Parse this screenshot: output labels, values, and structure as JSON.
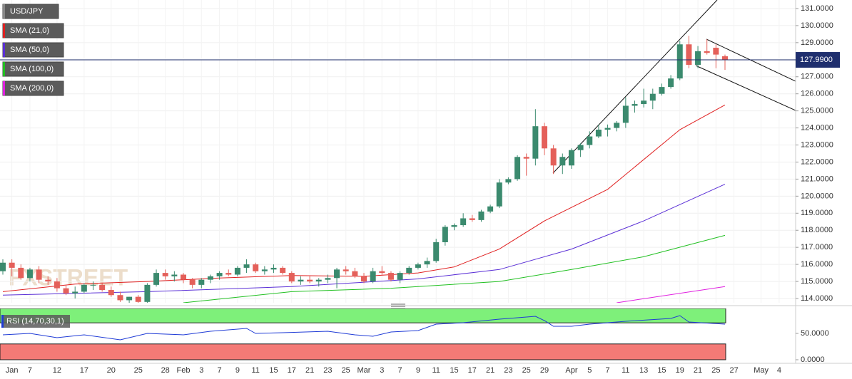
{
  "chart_data": [
    {
      "type": "candlestick",
      "watermark": "FXSTREET",
      "categories": [
        null,
        "Jan",
        null,
        "7",
        null,
        null,
        "12",
        null,
        null,
        "17",
        null,
        null,
        "20",
        null,
        null,
        "25",
        null,
        null,
        "28",
        null,
        "Feb",
        null,
        "3",
        null,
        "7",
        null,
        "9",
        null,
        "11",
        null,
        "15",
        null,
        "17",
        null,
        "21",
        null,
        "23",
        null,
        "25",
        null,
        "Mar",
        null,
        "3",
        null,
        "7",
        null,
        "9",
        null,
        "11",
        null,
        "15",
        null,
        "17",
        null,
        "21",
        null,
        "23",
        null,
        "25",
        null,
        "29",
        null,
        null,
        "Apr",
        null,
        "5",
        null,
        "7",
        null,
        "11",
        null,
        "13",
        null,
        "15",
        null,
        "19",
        null,
        "21",
        null,
        "25",
        null,
        "27",
        null,
        null,
        "May",
        null,
        "4"
      ],
      "candles": {
        "name": "USD/JPY",
        "up_color": "#3b8a6e",
        "down_color": "#e4605a",
        "open": [
          115.6,
          116.1,
          115.8,
          115.2,
          115.7,
          115.1,
          115.0,
          114.6,
          114.3,
          114.4,
          114.8,
          114.8,
          114.5,
          114.2,
          113.9,
          114.1,
          113.8,
          114.8,
          115.5,
          115.3,
          115.4,
          115.1,
          114.8,
          115.1,
          115.3,
          115.5,
          115.4,
          115.8,
          116.0,
          115.6,
          115.7,
          115.8,
          115.5,
          115.0,
          115.1,
          115.0,
          115.1,
          115.2,
          115.7,
          115.6,
          115.3,
          115.0,
          115.6,
          115.5,
          115.1,
          115.5,
          115.8,
          116.0,
          116.2,
          117.3,
          118.2,
          118.3,
          118.7,
          118.6,
          119.1,
          119.4,
          120.8,
          121.0,
          122.3,
          122.2,
          124.1,
          122.8,
          121.8,
          121.8,
          122.7,
          123.0,
          123.5,
          123.9,
          124.0,
          124.3,
          125.3,
          125.4,
          125.6,
          126.0,
          126.4,
          126.9,
          128.9,
          127.7,
          128.5,
          128.7,
          128.2,
          null,
          null,
          null,
          null,
          null,
          null
        ],
        "high": [
          116.3,
          116.3,
          116.0,
          115.8,
          115.9,
          115.3,
          115.2,
          114.8,
          114.7,
          114.9,
          115.0,
          114.9,
          114.7,
          114.4,
          114.1,
          114.2,
          114.9,
          115.7,
          115.7,
          115.6,
          115.5,
          115.2,
          115.2,
          115.4,
          115.6,
          115.7,
          115.9,
          116.3,
          116.1,
          115.9,
          116.0,
          115.9,
          115.6,
          115.3,
          115.3,
          115.2,
          115.4,
          115.8,
          115.9,
          115.8,
          115.5,
          115.8,
          115.9,
          115.6,
          115.6,
          115.9,
          116.1,
          116.4,
          117.5,
          118.3,
          118.4,
          119.0,
          118.9,
          119.2,
          119.5,
          121.0,
          121.1,
          122.4,
          122.5,
          125.1,
          124.3,
          123.0,
          122.5,
          122.8,
          123.1,
          123.8,
          124.2,
          124.2,
          124.4,
          125.8,
          125.6,
          126.3,
          126.3,
          126.6,
          127.1,
          129.1,
          129.4,
          128.8,
          129.2,
          128.9,
          128.3,
          null,
          null,
          null,
          null,
          null,
          null
        ],
        "low": [
          115.4,
          115.3,
          115.1,
          115.0,
          114.9,
          114.8,
          114.4,
          114.2,
          114.0,
          114.3,
          114.5,
          114.4,
          114.1,
          113.8,
          113.7,
          113.6,
          113.7,
          114.7,
          115.1,
          115.0,
          114.9,
          114.6,
          114.6,
          114.9,
          115.1,
          115.3,
          115.3,
          115.5,
          115.5,
          115.4,
          115.5,
          115.4,
          114.9,
          114.8,
          114.9,
          114.7,
          114.9,
          114.6,
          115.4,
          115.2,
          114.9,
          114.9,
          115.4,
          115.0,
          114.9,
          115.4,
          115.7,
          115.8,
          116.1,
          117.1,
          118.0,
          118.2,
          118.5,
          118.5,
          119.0,
          119.3,
          120.7,
          120.9,
          121.2,
          121.8,
          122.4,
          121.3,
          121.3,
          121.6,
          122.3,
          122.8,
          123.4,
          123.5,
          123.8,
          124.0,
          124.9,
          125.2,
          125.1,
          125.9,
          126.3,
          126.8,
          127.5,
          127.5,
          128.3,
          127.5,
          127.4,
          null,
          null,
          null,
          null,
          null,
          null
        ],
        "close": [
          116.1,
          115.8,
          115.2,
          115.7,
          115.1,
          115.0,
          114.6,
          114.3,
          114.4,
          114.8,
          114.8,
          114.5,
          114.2,
          113.9,
          114.1,
          113.8,
          114.8,
          115.5,
          115.3,
          115.4,
          115.1,
          114.8,
          115.1,
          115.3,
          115.5,
          115.4,
          115.8,
          116.0,
          115.6,
          115.7,
          115.8,
          115.5,
          115.0,
          115.1,
          115.0,
          115.1,
          115.2,
          115.7,
          115.6,
          115.3,
          115.0,
          115.6,
          115.5,
          115.1,
          115.5,
          115.8,
          116.0,
          116.2,
          117.3,
          118.2,
          118.3,
          118.7,
          118.6,
          119.1,
          119.4,
          120.8,
          121.0,
          122.3,
          122.2,
          124.1,
          122.8,
          121.8,
          122.3,
          122.7,
          123.0,
          123.5,
          123.9,
          124.0,
          124.3,
          125.3,
          125.4,
          125.6,
          126.0,
          126.4,
          126.9,
          128.9,
          127.7,
          128.5,
          128.4,
          128.3,
          128.0,
          null,
          null,
          null,
          null,
          null,
          null
        ]
      },
      "series": [
        {
          "name": "SMA (21,0)",
          "color": "#e02020",
          "x": [
            0,
            8,
            16,
            24,
            32,
            40,
            46,
            50,
            55,
            60,
            67,
            75,
            80
          ],
          "values": [
            114.4,
            114.85,
            115.0,
            115.2,
            115.35,
            115.3,
            115.5,
            115.85,
            116.9,
            118.55,
            120.4,
            123.9,
            125.35
          ]
        },
        {
          "name": "SMA (50,0)",
          "color": "#5a2fd6",
          "x": [
            0,
            16,
            32,
            46,
            55,
            63,
            71,
            80
          ],
          "values": [
            114.2,
            114.4,
            114.7,
            115.15,
            115.7,
            116.9,
            118.55,
            120.7
          ]
        },
        {
          "name": "SMA (100,0)",
          "color": "#22c022",
          "x": [
            20,
            32,
            43,
            55,
            63,
            71,
            80
          ],
          "values": [
            113.75,
            114.4,
            114.6,
            115.0,
            115.7,
            116.45,
            117.7
          ]
        },
        {
          "name": "SMA (200,0)",
          "color": "#e020e0",
          "x": [
            68,
            80
          ],
          "values": [
            113.75,
            114.7
          ]
        }
      ],
      "last": {
        "value": 127.99,
        "label": "127.9900",
        "color": "#1f2f6e"
      },
      "ylim": [
        113.75,
        131.5
      ],
      "yticks": [
        {
          "value": 114,
          "label": "114.0000"
        },
        {
          "value": 115,
          "label": "115.0000"
        },
        {
          "value": 116,
          "label": "116.0000"
        },
        {
          "value": 117,
          "label": "117.0000"
        },
        {
          "value": 118,
          "label": "118.0000"
        },
        {
          "value": 119,
          "label": "119.0000"
        },
        {
          "value": 120,
          "label": "120.0000"
        },
        {
          "value": 121,
          "label": "121.0000"
        },
        {
          "value": 122,
          "label": "122.0000"
        },
        {
          "value": 123,
          "label": "123.0000"
        },
        {
          "value": 124,
          "label": "124.0000"
        },
        {
          "value": 125,
          "label": "125.0000"
        },
        {
          "value": 126,
          "label": "126.0000"
        },
        {
          "value": 127,
          "label": "127.0000"
        },
        {
          "value": 128,
          "label": "128.0000"
        },
        {
          "value": 129,
          "label": "129.0000"
        },
        {
          "value": 130,
          "label": "130.0000"
        },
        {
          "value": 131,
          "label": "131.0000"
        }
      ],
      "grid": true
    },
    {
      "type": "line",
      "title": "RSI (14,70,30,1)",
      "upper_band": 70,
      "upper_color": "#7ef07a",
      "lower_band": 30,
      "lower_color": "#f47a76",
      "series": [
        {
          "color": "#1f3bd6",
          "x": [
            0,
            3,
            6,
            9,
            13,
            16,
            20,
            23,
            27,
            28,
            31,
            36,
            39,
            41,
            43,
            46,
            48,
            51,
            55,
            59,
            60,
            61,
            63,
            65,
            69,
            74,
            75,
            76,
            80
          ],
          "values": [
            47.3,
            50,
            41.9,
            47.3,
            37.8,
            50,
            47.3,
            54.1,
            59.5,
            50,
            51.4,
            54.1,
            47.3,
            44.6,
            52.7,
            55.4,
            67.6,
            70.3,
            77,
            82.4,
            74.3,
            63.5,
            63.5,
            67.6,
            73,
            78.4,
            83.8,
            71.6,
            67.6
          ]
        }
      ],
      "ylim": [
        -6.8,
        97.3
      ],
      "yticks": [
        {
          "value": 50,
          "label": "50.0000"
        },
        {
          "value": 0,
          "label": "0.0000"
        }
      ]
    }
  ]
}
